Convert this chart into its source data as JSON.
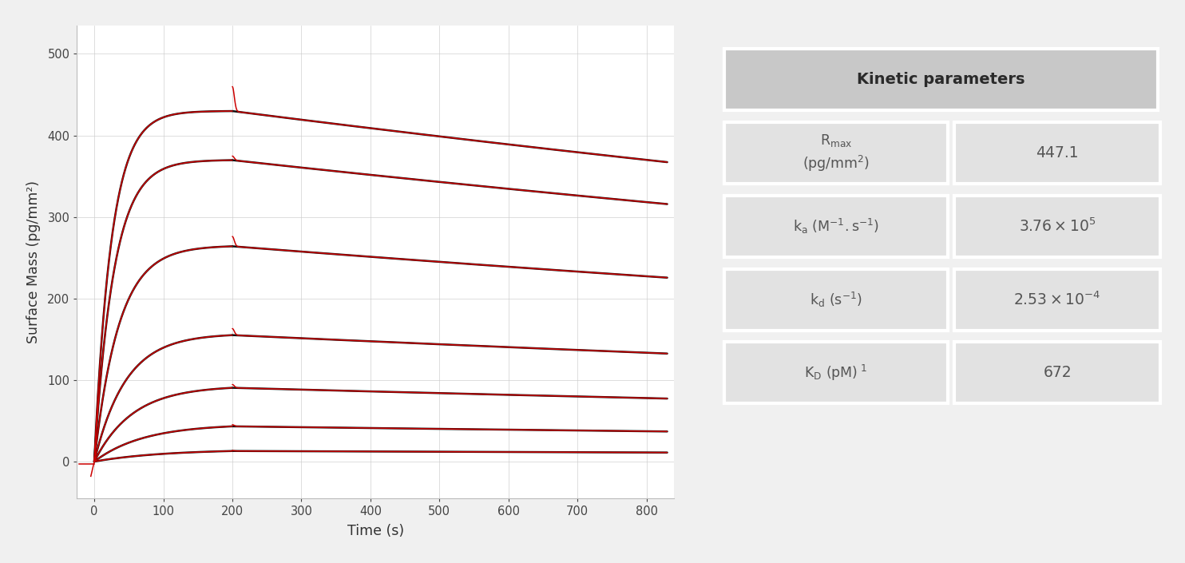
{
  "xlabel": "Time (s)",
  "ylabel": "Surface Mass (pg/mm²)",
  "xlim": [
    -25,
    840
  ],
  "ylim": [
    -45,
    535
  ],
  "xticks": [
    0,
    100,
    200,
    300,
    400,
    500,
    600,
    700,
    800
  ],
  "yticks": [
    0,
    100,
    200,
    300,
    400,
    500
  ],
  "bg_color": "#f0f0f0",
  "plot_bg": "#ffffff",
  "grid_color": "#cccccc",
  "black_color": "#111111",
  "red_color": "#cc0000",
  "table_header_bg": "#c8c8c8",
  "table_row_bg": "#e2e2e2",
  "curves": [
    {
      "plateau": 430,
      "peak_excess": 30,
      "k_on": 0.04,
      "final": 388
    },
    {
      "plateau": 370,
      "peak_excess": 5,
      "k_on": 0.035,
      "final": 335
    },
    {
      "plateau": 265,
      "peak_excess": 12,
      "k_on": 0.028,
      "final": 242
    },
    {
      "plateau": 157,
      "peak_excess": 8,
      "k_on": 0.022,
      "final": 150
    },
    {
      "plateau": 93,
      "peak_excess": 4,
      "k_on": 0.018,
      "final": 88
    },
    {
      "plateau": 46,
      "peak_excess": 2,
      "k_on": 0.014,
      "final": 43
    },
    {
      "plateau": 15,
      "peak_excess": 0.5,
      "k_on": 0.01,
      "final": 13
    }
  ],
  "kd": 0.00025,
  "t_assoc_end": 200,
  "t_dissoc_end": 830,
  "table_params": [
    {
      "label1": "R",
      "label1_sub": "max",
      "label2": "(pg/mm²)",
      "value": "447.1"
    },
    {
      "label1": "k",
      "label1_sub": "a",
      "label1_sup": " (M⁻¹.s⁻¹)",
      "label2": "",
      "value": "3.76x10⁵"
    },
    {
      "label1": "k",
      "label1_sub": "d",
      "label1_sup": " (s⁻¹)",
      "label2": "",
      "value": "2.53x10⁻⁴"
    },
    {
      "label1": "K",
      "label1_sub": "D",
      "label1_sup": " (pM) ¹",
      "label2": "",
      "value": "672"
    }
  ]
}
